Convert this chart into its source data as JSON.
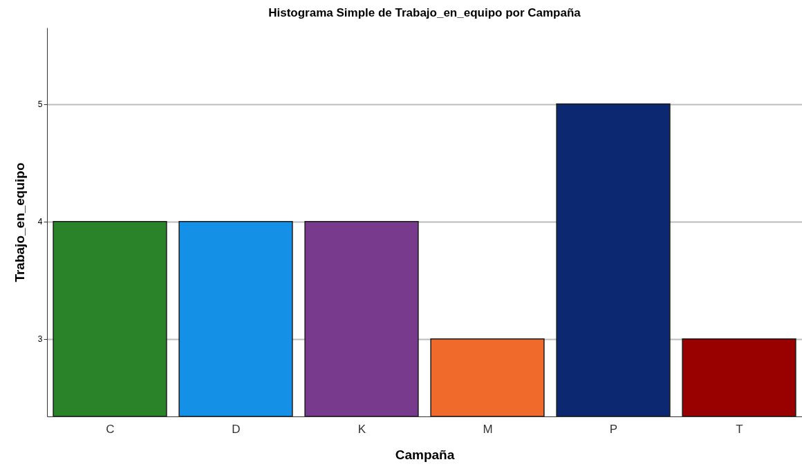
{
  "chart_data": {
    "type": "bar",
    "title": "Histograma Simple de Trabajo_en_equipo por Campaña",
    "xlabel": "Campaña",
    "ylabel": "Trabajo_en_equipo",
    "categories": [
      "C",
      "D",
      "K",
      "M",
      "P",
      "T"
    ],
    "values": [
      4,
      4,
      4,
      3,
      5,
      3
    ],
    "colors": [
      "#2a8229",
      "#1491e6",
      "#783a8c",
      "#f06a2b",
      "#0c2870",
      "#990000"
    ],
    "ylim": [
      2.34,
      5.65
    ],
    "yticks": [
      3,
      4,
      5
    ],
    "grid": "y"
  }
}
